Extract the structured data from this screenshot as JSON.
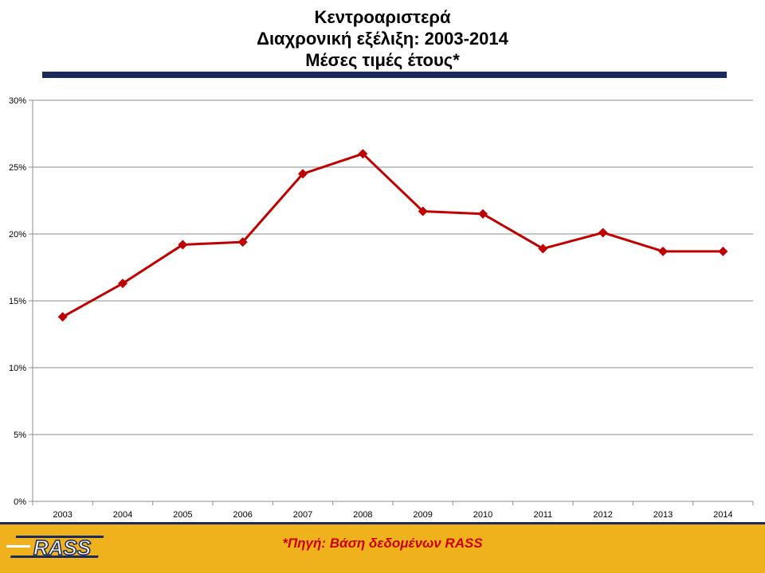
{
  "chart_data": {
    "type": "line",
    "title": [
      "Κεντροαριστερά",
      "Διαχρονική εξέλιξη: 2003-2014",
      "Μέσες τιμές έτους*"
    ],
    "categories": [
      "2003",
      "2004",
      "2005",
      "2006",
      "2007",
      "2008",
      "2009",
      "2010",
      "2011",
      "2012",
      "2013",
      "2014"
    ],
    "series": [
      {
        "values": [
          13.8,
          16.3,
          19.2,
          19.4,
          24.5,
          26.0,
          21.7,
          21.5,
          18.9,
          20.1,
          18.7,
          18.7
        ],
        "color": "#c00000"
      }
    ],
    "ylim": [
      0,
      30
    ],
    "yticks": [
      0,
      5,
      10,
      15,
      20,
      25,
      30
    ],
    "ytick_labels": [
      "0%",
      "5%",
      "10%",
      "15%",
      "20%",
      "25%",
      "30%"
    ],
    "grid": true,
    "marker": "diamond"
  },
  "footer": {
    "note": "*Πηγή: Βάση δεδομένων RASS",
    "logo_text": "RASS"
  },
  "colors": {
    "title_rule": "#1a2a5c",
    "footer_bg": "#efb21d",
    "note_text": "#cc0000",
    "series": "#c00000"
  }
}
